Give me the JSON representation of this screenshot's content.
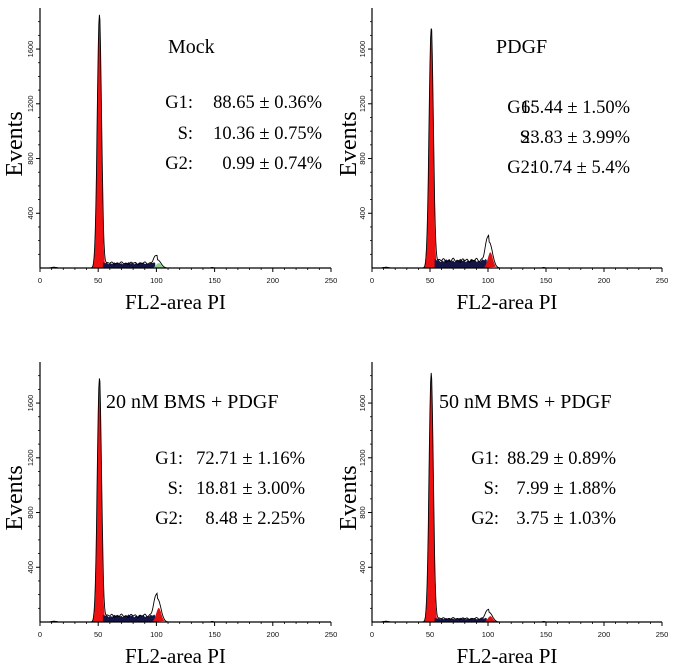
{
  "colors": {
    "g1": "#ee1111",
    "s": "#141446",
    "g2_red": "#dd1111",
    "g2_green": "#8fd08f",
    "line": "#000000"
  },
  "chart_data": [
    {
      "type": "histogram",
      "title": "Mock",
      "xlabel": "FL2-area  PI",
      "ylabel": "Events",
      "xlim": [
        0,
        250
      ],
      "ylim": [
        0,
        1900
      ],
      "xticks": [
        "0",
        "50",
        "100",
        "150",
        "200",
        "250"
      ],
      "yticks": [
        "400",
        "800",
        "1200",
        "1600"
      ],
      "stats": [
        {
          "label": "G1:",
          "value": "88.65 ± 0.36%"
        },
        {
          "label": "S:",
          "value": "10.36 ± 0.75%"
        },
        {
          "label": "G2:",
          "value": "0.99 ± 0.74%"
        }
      ],
      "g2_color": "green",
      "peaks": {
        "g1_position": 51,
        "g1_height": 1850,
        "s_level": 35,
        "g2_position": 101,
        "g2_height": 60
      }
    },
    {
      "type": "histogram",
      "title": "PDGF",
      "xlabel": "FL2-area  PI",
      "ylabel": "Events",
      "xlim": [
        0,
        250
      ],
      "ylim": [
        0,
        1900
      ],
      "xticks": [
        "0",
        "50",
        "100",
        "150",
        "200",
        "250"
      ],
      "yticks": [
        "400",
        "800",
        "1200",
        "1600"
      ],
      "stats": [
        {
          "label": "G1:",
          "value": "65.44 ± 1.50%"
        },
        {
          "label": "S:",
          "value": "23.83 ± 3.99%"
        },
        {
          "label": "G2:",
          "value": "10.74 ± 5.4%"
        }
      ],
      "g2_color": "red",
      "peaks": {
        "g1_position": 51,
        "g1_height": 1750,
        "s_level": 55,
        "g2_position": 101,
        "g2_height": 190
      }
    },
    {
      "type": "histogram",
      "title": "20 nM BMS + PDGF",
      "xlabel": "FL2-area  PI",
      "ylabel": "Events",
      "xlim": [
        0,
        250
      ],
      "ylim": [
        0,
        1900
      ],
      "xticks": [
        "0",
        "50",
        "100",
        "150",
        "200",
        "250"
      ],
      "yticks": [
        "400",
        "800",
        "1200",
        "1600"
      ],
      "stats": [
        {
          "label": "G1:",
          "value": "72.71 ± 1.16%"
        },
        {
          "label": "S:",
          "value": "18.81 ± 3.00%"
        },
        {
          "label": "G2:",
          "value": "8.48 ± 2.25%"
        }
      ],
      "g2_color": "red",
      "peaks": {
        "g1_position": 51,
        "g1_height": 1780,
        "s_level": 45,
        "g2_position": 101,
        "g2_height": 170
      }
    },
    {
      "type": "histogram",
      "title": "50 nM BMS + PDGF",
      "xlabel": "FL2-area  PI",
      "ylabel": "Events",
      "xlim": [
        0,
        250
      ],
      "ylim": [
        0,
        1900
      ],
      "xticks": [
        "0",
        "50",
        "100",
        "150",
        "200",
        "250"
      ],
      "yticks": [
        "400",
        "800",
        "1200",
        "1600"
      ],
      "stats": [
        {
          "label": "G1:",
          "value": "88.29 ± 0.89%"
        },
        {
          "label": "S:",
          "value": "7.99 ± 1.88%"
        },
        {
          "label": "G2:",
          "value": "3.75 ± 1.03%"
        }
      ],
      "g2_color": "red",
      "peaks": {
        "g1_position": 51,
        "g1_height": 1820,
        "s_level": 25,
        "g2_position": 101,
        "g2_height": 70
      }
    }
  ]
}
